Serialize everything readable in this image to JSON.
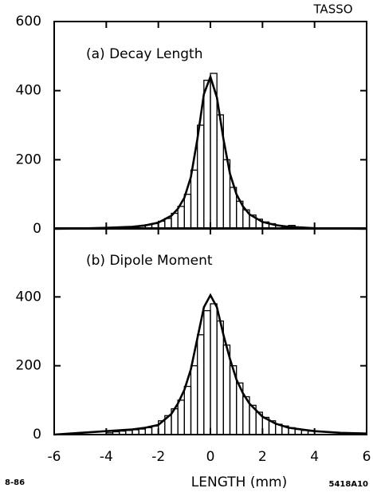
{
  "chart_data": [
    {
      "type": "histogram",
      "corner_label": "TASSO",
      "title": "(a) Decay Length",
      "bins": [
        -4,
        -3.75,
        -3.5,
        -3.25,
        -3,
        -2.75,
        -2.5,
        -2.25,
        -2,
        -1.75,
        -1.5,
        -1.25,
        -1,
        -0.75,
        -0.5,
        -0.25,
        0,
        0.25,
        0.5,
        0.75,
        1,
        1.25,
        1.5,
        1.75,
        2,
        2.25,
        2.5,
        2.75,
        3,
        3.25,
        3.5,
        3.75,
        4
      ],
      "values": [
        2,
        3,
        4,
        5,
        6,
        8,
        12,
        15,
        22,
        30,
        45,
        65,
        100,
        170,
        300,
        430,
        450,
        330,
        200,
        120,
        80,
        55,
        40,
        28,
        20,
        15,
        10,
        8,
        10,
        5,
        3,
        2
      ],
      "fit_x": [
        -6,
        -5,
        -4,
        -3,
        -2.5,
        -2,
        -1.5,
        -1.25,
        -1,
        -0.75,
        -0.5,
        -0.25,
        0,
        0.25,
        0.5,
        0.75,
        1,
        1.25,
        1.5,
        2,
        2.5,
        3,
        4,
        5,
        6
      ],
      "fit_values": [
        0,
        1,
        3,
        6,
        10,
        18,
        38,
        58,
        90,
        150,
        260,
        390,
        440,
        380,
        260,
        160,
        100,
        65,
        42,
        20,
        11,
        6,
        2,
        1,
        0
      ],
      "color": "#000000",
      "xlim": [
        -6,
        6
      ],
      "ylim": [
        0,
        600
      ],
      "yticks": [
        0,
        200,
        400,
        600
      ]
    },
    {
      "type": "histogram",
      "title": "(b) Dipole Moment",
      "xlabel": "LENGTH   (mm)",
      "footnote_left": "8-86",
      "footnote_right": "5418A10",
      "bins": [
        -4,
        -3.75,
        -3.5,
        -3.25,
        -3,
        -2.75,
        -2.5,
        -2.25,
        -2,
        -1.75,
        -1.5,
        -1.25,
        -1,
        -0.75,
        -0.5,
        -0.25,
        0,
        0.25,
        0.5,
        0.75,
        1,
        1.25,
        1.5,
        1.75,
        2,
        2.25,
        2.5,
        2.75,
        3,
        3.25,
        3.5,
        3.75,
        4
      ],
      "values": [
        5,
        8,
        10,
        12,
        14,
        16,
        20,
        25,
        40,
        55,
        75,
        100,
        140,
        200,
        290,
        360,
        380,
        330,
        260,
        200,
        150,
        110,
        85,
        65,
        50,
        40,
        30,
        25,
        20,
        15,
        12,
        10
      ],
      "fit_x": [
        -6,
        -5,
        -4,
        -3,
        -2.5,
        -2,
        -1.5,
        -1.25,
        -1,
        -0.75,
        -0.5,
        -0.25,
        0,
        0.25,
        0.5,
        0.75,
        1,
        1.25,
        1.5,
        2,
        2.5,
        3,
        4,
        5,
        6
      ],
      "fit_values": [
        0,
        5,
        10,
        15,
        20,
        28,
        60,
        90,
        130,
        190,
        280,
        370,
        405,
        370,
        290,
        220,
        160,
        120,
        90,
        52,
        32,
        20,
        10,
        5,
        3
      ],
      "color": "#000000",
      "xlim": [
        -6,
        6
      ],
      "ylim": [
        0,
        600
      ],
      "yticks": [
        0,
        200,
        400
      ],
      "xticks": [
        -6,
        -4,
        -2,
        0,
        2,
        4,
        6
      ]
    }
  ]
}
